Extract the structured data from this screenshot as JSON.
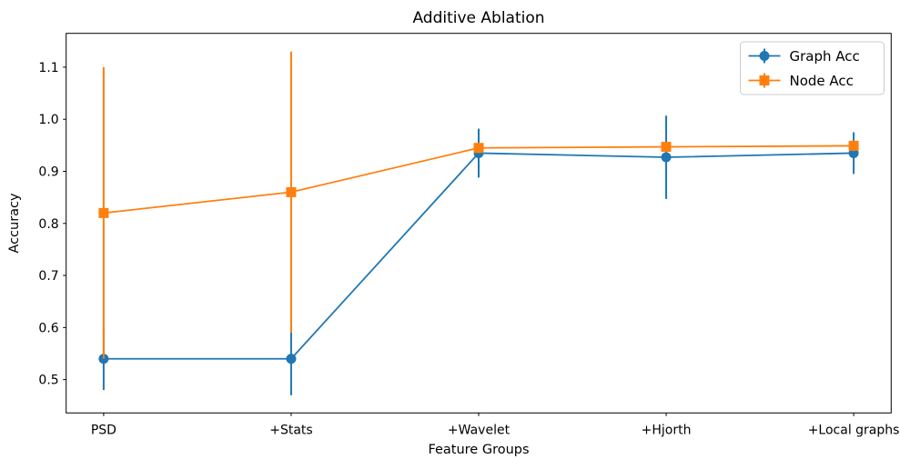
{
  "title": "Additive Ablation",
  "chart_data": {
    "type": "line",
    "title": "Additive Ablation",
    "xlabel": "Feature Groups",
    "ylabel": "Accuracy",
    "categories": [
      "PSD",
      "+Stats",
      "+Wavelet",
      "+Hjorth",
      "+Local graphs"
    ],
    "series": [
      {
        "name": "Graph Acc",
        "color": "#1f77b4",
        "marker": "circle",
        "values": [
          0.54,
          0.54,
          0.935,
          0.927,
          0.935
        ],
        "errors": [
          0.06,
          0.07,
          0.047,
          0.08,
          0.04
        ]
      },
      {
        "name": "Node Acc",
        "color": "#ff7f0e",
        "marker": "square",
        "values": [
          0.82,
          0.86,
          0.945,
          0.947,
          0.949
        ],
        "errors": [
          0.28,
          0.27,
          0.01,
          0.01,
          0.01
        ]
      }
    ],
    "yticks": [
      0.5,
      0.6,
      0.7,
      0.8,
      0.9,
      1.0,
      1.1
    ],
    "ytick_labels": [
      "0.5",
      "0.6",
      "0.7",
      "0.8",
      "0.9",
      "1.0",
      "1.1"
    ],
    "ylim": [
      0.436,
      1.165
    ],
    "legend_position": "upper right",
    "grid": false,
    "error_bar_caps": false
  },
  "colors": {
    "background": "#ffffff",
    "spine": "#000000",
    "tick": "#000000",
    "legend_border": "#cccccc",
    "series_blue": "#1f77b4",
    "series_orange": "#ff7f0e"
  }
}
